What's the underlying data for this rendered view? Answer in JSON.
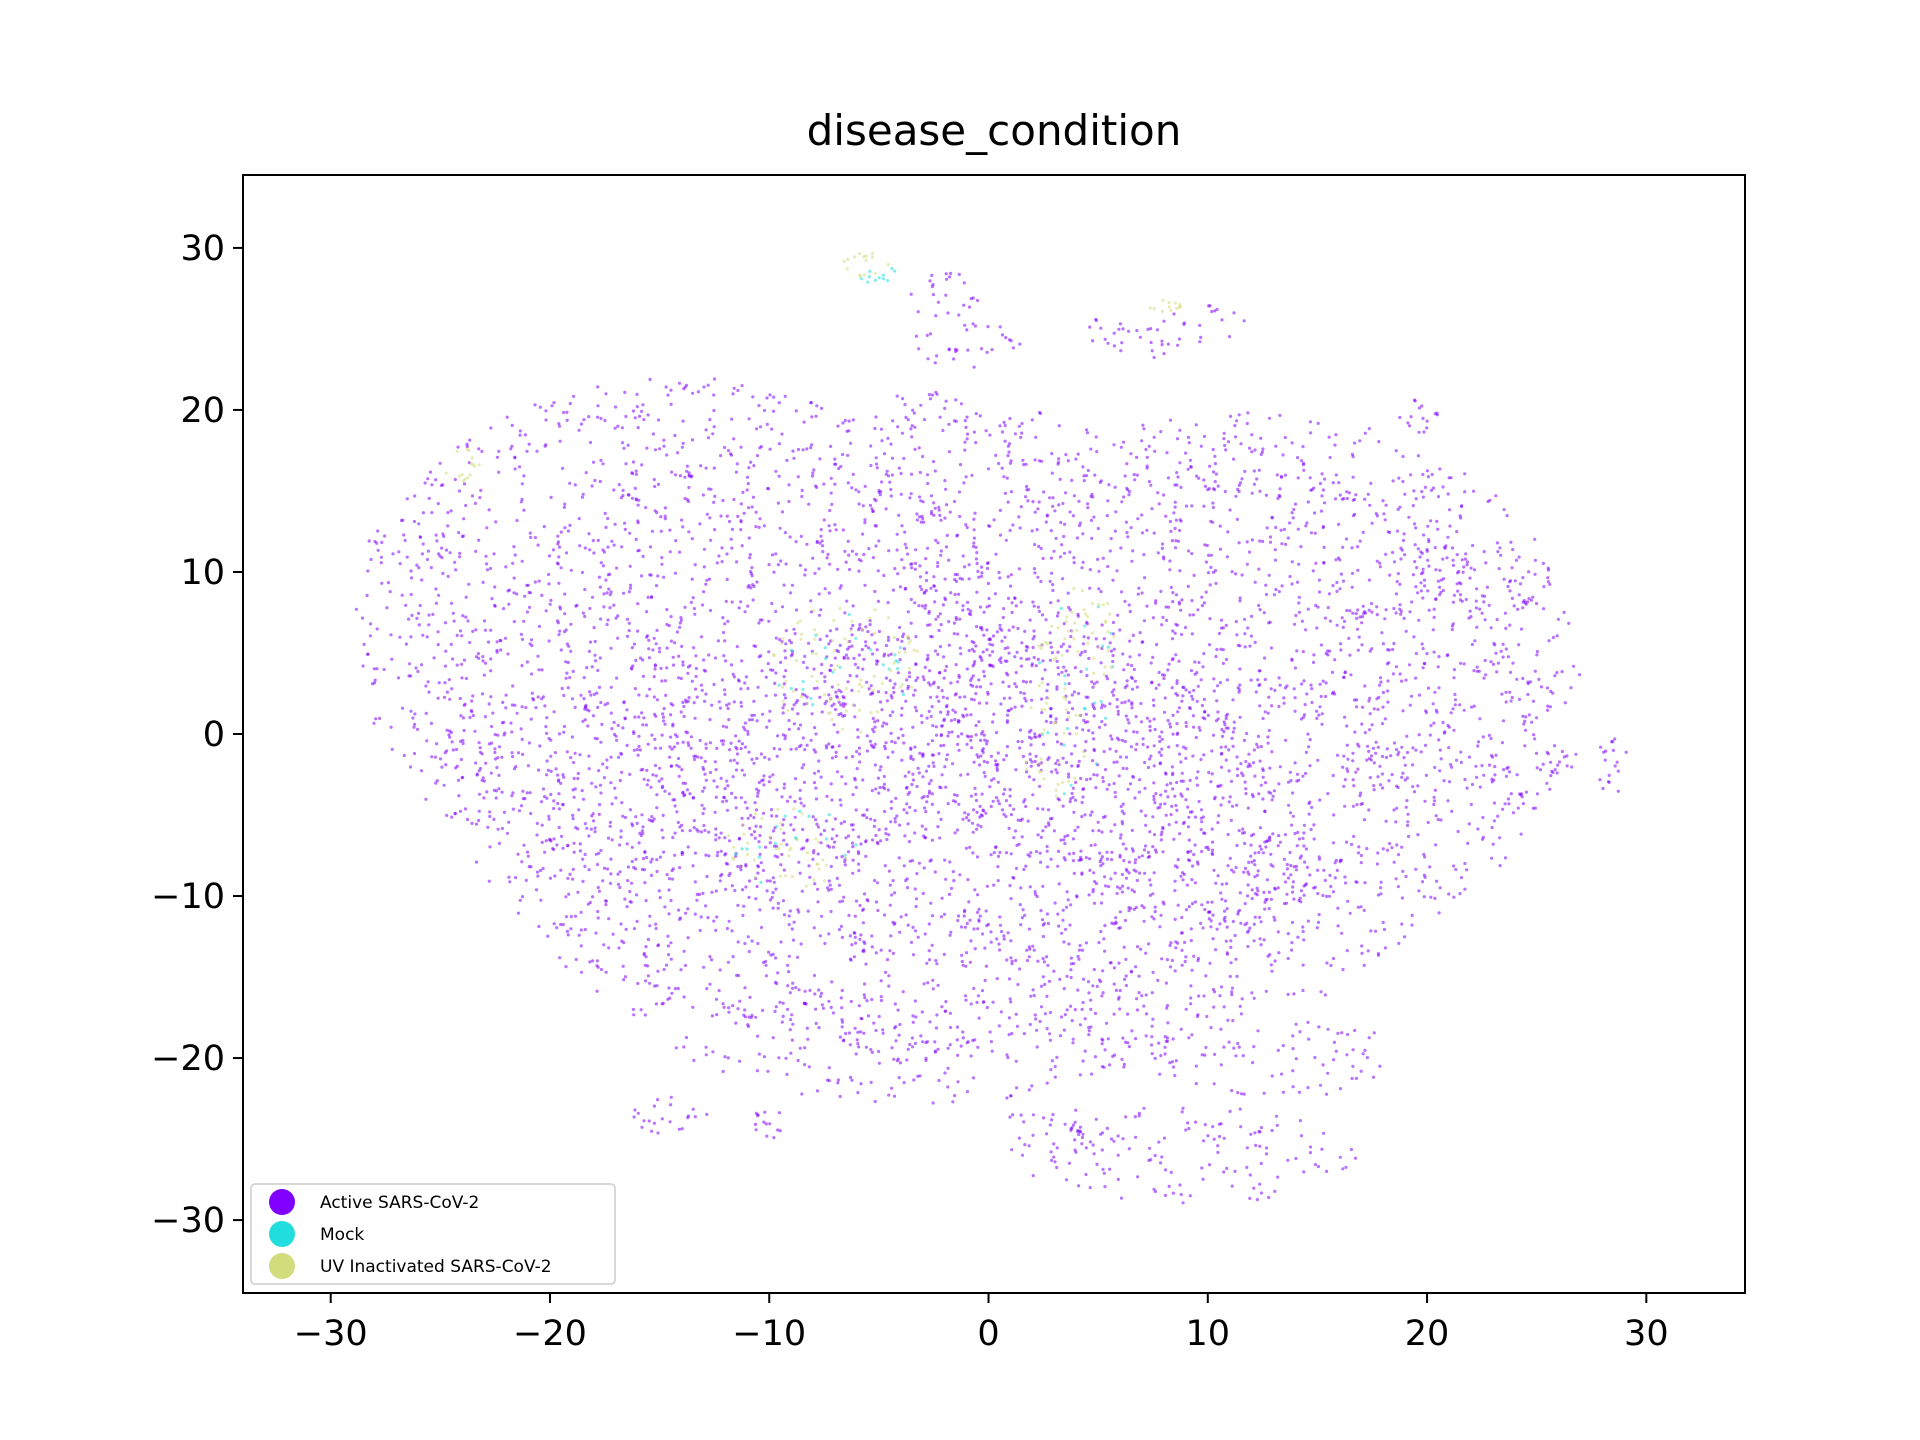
{
  "chart_data": {
    "type": "scatter",
    "title": "disease_condition",
    "xlabel": "",
    "ylabel": "",
    "xlim": [
      -34,
      34.5
    ],
    "ylim": [
      -34.5,
      34.5
    ],
    "xticks": [
      -30,
      -20,
      -10,
      0,
      10,
      20,
      30
    ],
    "yticks": [
      -30,
      -20,
      -10,
      0,
      10,
      20,
      30
    ],
    "xtick_labels": [
      "−30",
      "−20",
      "−10",
      "0",
      "10",
      "20",
      "30"
    ],
    "ytick_labels": [
      "−30",
      "−20",
      "−10",
      "0",
      "10",
      "20",
      "30"
    ],
    "grid": false,
    "legend_position": "lower-left",
    "series": [
      {
        "name": "Active SARS-CoV-2",
        "color": "#8000ff",
        "regions": [
          {
            "cx": -14,
            "cy": 6,
            "rx": 15,
            "ry": 16,
            "density": 0.9
          },
          {
            "cx": 12,
            "cy": 4,
            "rx": 15,
            "ry": 16,
            "density": 0.9
          },
          {
            "cx": -3,
            "cy": -8,
            "rx": 18,
            "ry": 15,
            "density": 0.85
          },
          {
            "cx": 0,
            "cy": 0,
            "rx": 26,
            "ry": 20,
            "density": 0.6
          },
          {
            "cx": 8,
            "cy": 25,
            "rx": 4,
            "ry": 1.8,
            "density": 0.8
          },
          {
            "cx": -2,
            "cy": 27,
            "rx": 1.6,
            "ry": 1.5,
            "density": 0.9
          },
          {
            "cx": -1,
            "cy": 24,
            "rx": 2.5,
            "ry": 1.5,
            "density": 0.9
          },
          {
            "cx": -3,
            "cy": 20,
            "rx": 2,
            "ry": 1.3,
            "density": 0.9
          },
          {
            "cx": 0,
            "cy": 18.5,
            "rx": 2,
            "ry": 1.2,
            "density": 0.9
          },
          {
            "cx": -26.5,
            "cy": 11.5,
            "rx": 2,
            "ry": 1.5,
            "density": 0.9
          },
          {
            "cx": 24.5,
            "cy": 9.5,
            "rx": 1.3,
            "ry": 1.5,
            "density": 0.9
          },
          {
            "cx": 21,
            "cy": 10,
            "rx": 1.5,
            "ry": 2,
            "density": 0.7
          },
          {
            "cx": 9,
            "cy": -26,
            "rx": 8,
            "ry": 3,
            "density": 0.8
          },
          {
            "cx": 13,
            "cy": -20,
            "rx": 6,
            "ry": 2.5,
            "density": 0.8
          },
          {
            "cx": 3,
            "cy": -25,
            "rx": 3,
            "ry": 2,
            "density": 0.8
          },
          {
            "cx": -14.5,
            "cy": -23.5,
            "rx": 1.8,
            "ry": 1.2,
            "density": 0.9
          },
          {
            "cx": -10,
            "cy": -24,
            "rx": 0.8,
            "ry": 1,
            "density": 0.9
          },
          {
            "cx": 28.5,
            "cy": -2,
            "rx": 0.8,
            "ry": 1.8,
            "density": 0.9
          },
          {
            "cx": 26,
            "cy": -2,
            "rx": 1.2,
            "ry": 1,
            "density": 0.8
          },
          {
            "cx": 19.5,
            "cy": 19.5,
            "rx": 1,
            "ry": 1.2,
            "density": 0.8
          }
        ]
      },
      {
        "name": "Mock",
        "color": "#22dddd",
        "regions": [
          {
            "cx": -6.5,
            "cy": 4,
            "rx": 3.5,
            "ry": 4,
            "density": 0.15
          },
          {
            "cx": 4,
            "cy": 3,
            "rx": 2,
            "ry": 7,
            "density": 0.15
          },
          {
            "cx": -9,
            "cy": -7,
            "rx": 3,
            "ry": 2.5,
            "density": 0.15
          },
          {
            "cx": -5,
            "cy": 28.5,
            "rx": 1,
            "ry": 0.8,
            "density": 0.3
          }
        ]
      },
      {
        "name": "UV Inactivated SARS-CoV-2",
        "color": "#d3dc7c",
        "regions": [
          {
            "cx": -6.5,
            "cy": 4,
            "rx": 3.5,
            "ry": 4,
            "density": 0.8
          },
          {
            "cx": 4,
            "cy": 6,
            "rx": 2,
            "ry": 3.5,
            "density": 0.8
          },
          {
            "cx": 3,
            "cy": 0,
            "rx": 1.5,
            "ry": 4,
            "density": 0.7
          },
          {
            "cx": -9,
            "cy": -7,
            "rx": 3,
            "ry": 2.5,
            "density": 0.7
          },
          {
            "cx": -5.5,
            "cy": 29,
            "rx": 1.2,
            "ry": 0.8,
            "density": 0.9
          },
          {
            "cx": -24,
            "cy": 16.5,
            "rx": 0.8,
            "ry": 1.2,
            "density": 0.9
          },
          {
            "cx": 8,
            "cy": 26.5,
            "rx": 0.8,
            "ry": 0.5,
            "density": 0.8
          }
        ]
      }
    ]
  }
}
